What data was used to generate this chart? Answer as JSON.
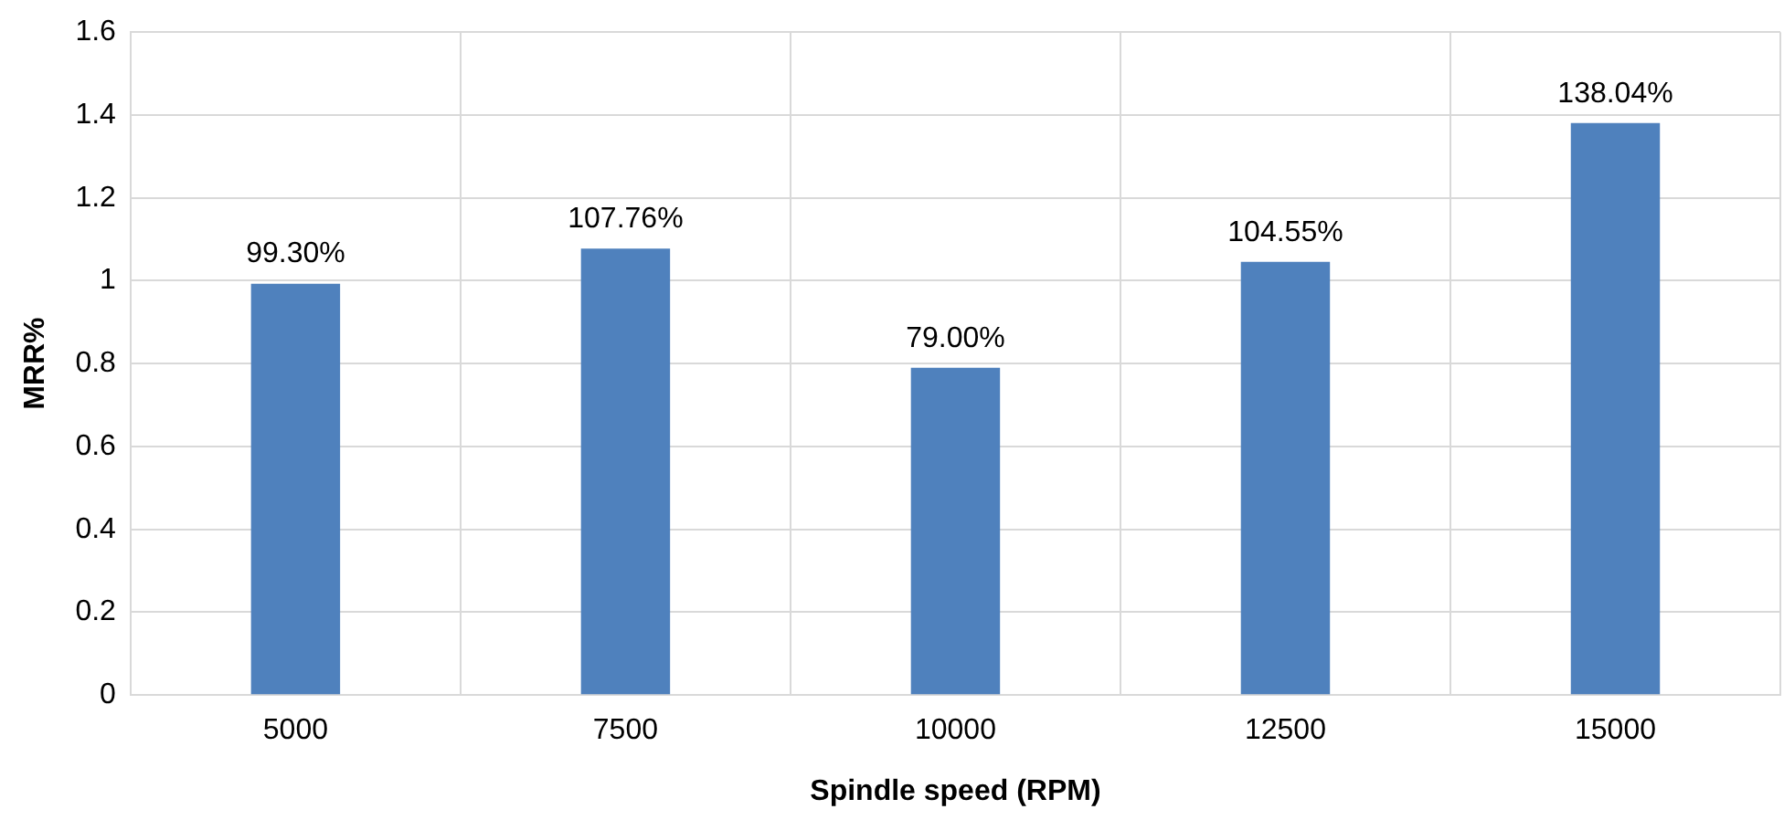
{
  "chart_data": {
    "type": "bar",
    "xlabel": "Spindle speed (RPM)",
    "ylabel": "MRR%",
    "categories": [
      "5000",
      "7500",
      "10000",
      "12500",
      "15000"
    ],
    "values": [
      0.993,
      1.0776,
      0.79,
      1.0455,
      1.3804
    ],
    "value_labels": [
      "99.30%",
      "107.76%",
      "79.00%",
      "104.55%",
      "138.04%"
    ],
    "color": "#4f81bd",
    "ylim": [
      0,
      1.6
    ],
    "yticks": [
      0,
      0.2,
      0.4,
      0.6,
      0.8,
      1,
      1.2,
      1.4,
      1.6
    ],
    "grid": true,
    "legend": false
  }
}
